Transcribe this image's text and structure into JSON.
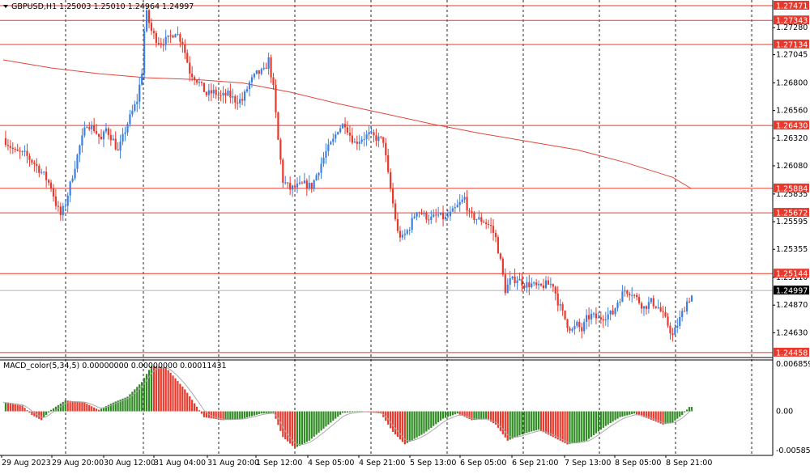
{
  "header": {
    "symbol_line": "GBPUSD,H1  1.25003 1.25010 1.24964 1.24997",
    "macd_line": "MACD_color(5,34,5) 0.00000000 0.00000000 0.00011431"
  },
  "colors": {
    "bull": "#3d7fe0",
    "bear": "#e8392c",
    "ma": "#e0473c",
    "level": "#e8392c",
    "macd_up": "#2e8b22",
    "macd_down": "#e8392c",
    "signal": "#a9a9a9",
    "grid": "#000000",
    "current_line": "#b0b0b0"
  },
  "chart_data": [
    {
      "type": "candlestick",
      "title": "GBPUSD,H1",
      "ylim": [
        1.24415,
        1.2752
      ],
      "y_ticks": [
        "1.27280",
        "1.27045",
        "1.26800",
        "1.26560",
        "1.26320",
        "1.26080",
        "1.25835",
        "1.25595",
        "1.25355",
        "1.25110",
        "1.24870",
        "1.24630"
      ],
      "x_labels": [
        "29 Aug 2023",
        "29 Aug 20:00",
        "30 Aug 12:00",
        "31 Aug 04:00",
        "31 Aug 20:00",
        "1 Sep 12:00",
        "4 Sep 05:00",
        "4 Sep 21:00",
        "5 Sep 13:00",
        "6 Sep 05:00",
        "6 Sep 21:00",
        "7 Sep 13:00",
        "8 Sep 05:00",
        "8 Sep 21:00"
      ],
      "levels": [
        "1.27471",
        "1.27343",
        "1.27134",
        "1.26430",
        "1.25884",
        "1.25672",
        "1.25144",
        "1.24458"
      ],
      "current_price": "1.24997",
      "close_path": [
        [
          0,
          1.2632
        ],
        [
          5,
          1.262
        ],
        [
          9,
          1.2618
        ],
        [
          13,
          1.261
        ],
        [
          17,
          1.26
        ],
        [
          20,
          1.259
        ],
        [
          22,
          1.2575
        ],
        [
          24,
          1.2565
        ],
        [
          26,
          1.2575
        ],
        [
          29,
          1.26
        ],
        [
          32,
          1.2625
        ],
        [
          35,
          1.2645
        ],
        [
          38,
          1.264
        ],
        [
          41,
          1.263
        ],
        [
          43,
          1.264
        ],
        [
          46,
          1.263
        ],
        [
          48,
          1.262
        ],
        [
          52,
          1.2645
        ],
        [
          56,
          1.2665
        ],
        [
          58,
          1.269
        ],
        [
          59,
          1.2725
        ],
        [
          60,
          1.274
        ],
        [
          62,
          1.2725
        ],
        [
          64,
          1.2718
        ],
        [
          66,
          1.2715
        ],
        [
          69,
          1.2718
        ],
        [
          72,
          1.2725
        ],
        [
          75,
          1.2715
        ],
        [
          78,
          1.269
        ],
        [
          82,
          1.268
        ],
        [
          85,
          1.267
        ],
        [
          88,
          1.2672
        ],
        [
          91,
          1.2668
        ],
        [
          94,
          1.267
        ],
        [
          97,
          1.2665
        ],
        [
          100,
          1.2665
        ],
        [
          103,
          1.268
        ],
        [
          106,
          1.2688
        ],
        [
          109,
          1.269
        ],
        [
          111,
          1.27
        ],
        [
          113,
          1.2675
        ],
        [
          115,
          1.263
        ],
        [
          117,
          1.2595
        ],
        [
          120,
          1.2588
        ],
        [
          123,
          1.259
        ],
        [
          126,
          1.2592
        ],
        [
          129,
          1.259
        ],
        [
          132,
          1.2605
        ],
        [
          135,
          1.262
        ],
        [
          138,
          1.263
        ],
        [
          140,
          1.264
        ],
        [
          143,
          1.2645
        ],
        [
          145,
          1.2635
        ],
        [
          147,
          1.2628
        ],
        [
          150,
          1.2632
        ],
        [
          153,
          1.2635
        ],
        [
          156,
          1.2632
        ],
        [
          159,
          1.263
        ],
        [
          161,
          1.26
        ],
        [
          163,
          1.2575
        ],
        [
          165,
          1.255
        ],
        [
          167,
          1.2545
        ],
        [
          170,
          1.2555
        ],
        [
          173,
          1.257
        ],
        [
          176,
          1.2565
        ],
        [
          179,
          1.2562
        ],
        [
          182,
          1.2565
        ],
        [
          185,
          1.2562
        ],
        [
          188,
          1.2568
        ],
        [
          191,
          1.2575
        ],
        [
          193,
          1.258
        ],
        [
          195,
          1.2565
        ],
        [
          198,
          1.2562
        ],
        [
          201,
          1.256
        ],
        [
          204,
          1.2555
        ],
        [
          206,
          1.2545
        ],
        [
          208,
          1.2525
        ],
        [
          210,
          1.25
        ],
        [
          212,
          1.2508
        ],
        [
          215,
          1.251
        ],
        [
          218,
          1.2505
        ],
        [
          221,
          1.2505
        ],
        [
          224,
          1.2502
        ],
        [
          227,
          1.2505
        ],
        [
          230,
          1.2505
        ],
        [
          232,
          1.249
        ],
        [
          234,
          1.248
        ],
        [
          236,
          1.247
        ],
        [
          238,
          1.2465
        ],
        [
          240,
          1.247
        ],
        [
          242,
          1.2465
        ],
        [
          244,
          1.2475
        ],
        [
          246,
          1.2478
        ],
        [
          249,
          1.2475
        ],
        [
          252,
          1.2478
        ],
        [
          255,
          1.248
        ],
        [
          257,
          1.249
        ],
        [
          260,
          1.25
        ],
        [
          263,
          1.2498
        ],
        [
          266,
          1.249
        ],
        [
          268,
          1.2485
        ],
        [
          271,
          1.249
        ],
        [
          274,
          1.2485
        ],
        [
          276,
          1.2478
        ],
        [
          278,
          1.247
        ],
        [
          280,
          1.246
        ],
        [
          282,
          1.247
        ],
        [
          284,
          1.248
        ],
        [
          286,
          1.249
        ],
        [
          288,
          1.2495
        ],
        [
          290,
          1.25
        ]
      ],
      "ma_path": [
        [
          0,
          1.27
        ],
        [
          20,
          1.2693
        ],
        [
          40,
          1.2688
        ],
        [
          60,
          1.26845
        ],
        [
          80,
          1.2683
        ],
        [
          100,
          1.268
        ],
        [
          120,
          1.2672
        ],
        [
          140,
          1.2662
        ],
        [
          160,
          1.2653
        ],
        [
          180,
          1.2644
        ],
        [
          200,
          1.2636
        ],
        [
          220,
          1.2629
        ],
        [
          240,
          1.2622
        ],
        [
          260,
          1.2611
        ],
        [
          280,
          1.2598
        ],
        [
          288,
          1.2588
        ]
      ]
    },
    {
      "type": "bar",
      "title": "MACD_color(5,34,5)",
      "ylim": [
        -0.006,
        0.007
      ],
      "y_ticks": [
        "0.006859",
        "0.00",
        "-0.005852"
      ],
      "macd_path": [
        [
          0,
          0.0012
        ],
        [
          8,
          0.0008
        ],
        [
          12,
          -0.0005
        ],
        [
          16,
          -0.0012
        ],
        [
          20,
          0.0002
        ],
        [
          26,
          0.0015
        ],
        [
          34,
          0.0012
        ],
        [
          40,
          0.0002
        ],
        [
          46,
          0.0012
        ],
        [
          52,
          0.002
        ],
        [
          58,
          0.004
        ],
        [
          62,
          0.0062
        ],
        [
          68,
          0.006
        ],
        [
          76,
          0.003
        ],
        [
          84,
          -0.0008
        ],
        [
          92,
          -0.0012
        ],
        [
          100,
          -0.001
        ],
        [
          108,
          -0.0003
        ],
        [
          113,
          -0.0002
        ],
        [
          117,
          -0.0035
        ],
        [
          122,
          -0.005
        ],
        [
          128,
          -0.004
        ],
        [
          136,
          -0.0018
        ],
        [
          142,
          -0.0002
        ],
        [
          150,
          0.0
        ],
        [
          158,
          -0.0003
        ],
        [
          163,
          -0.0028
        ],
        [
          168,
          -0.0045
        ],
        [
          176,
          -0.003
        ],
        [
          184,
          -0.001
        ],
        [
          190,
          -0.0003
        ],
        [
          196,
          -0.0012
        ],
        [
          202,
          -0.001
        ],
        [
          206,
          -0.0018
        ],
        [
          211,
          -0.004
        ],
        [
          218,
          -0.003
        ],
        [
          224,
          -0.0025
        ],
        [
          230,
          -0.0035
        ],
        [
          236,
          -0.0045
        ],
        [
          244,
          -0.004
        ],
        [
          252,
          -0.002
        ],
        [
          258,
          -0.0008
        ],
        [
          264,
          -0.0003
        ],
        [
          270,
          -0.001
        ],
        [
          276,
          -0.0018
        ],
        [
          280,
          -0.0015
        ],
        [
          284,
          -0.0005
        ],
        [
          287,
          0.0006
        ]
      ]
    }
  ]
}
